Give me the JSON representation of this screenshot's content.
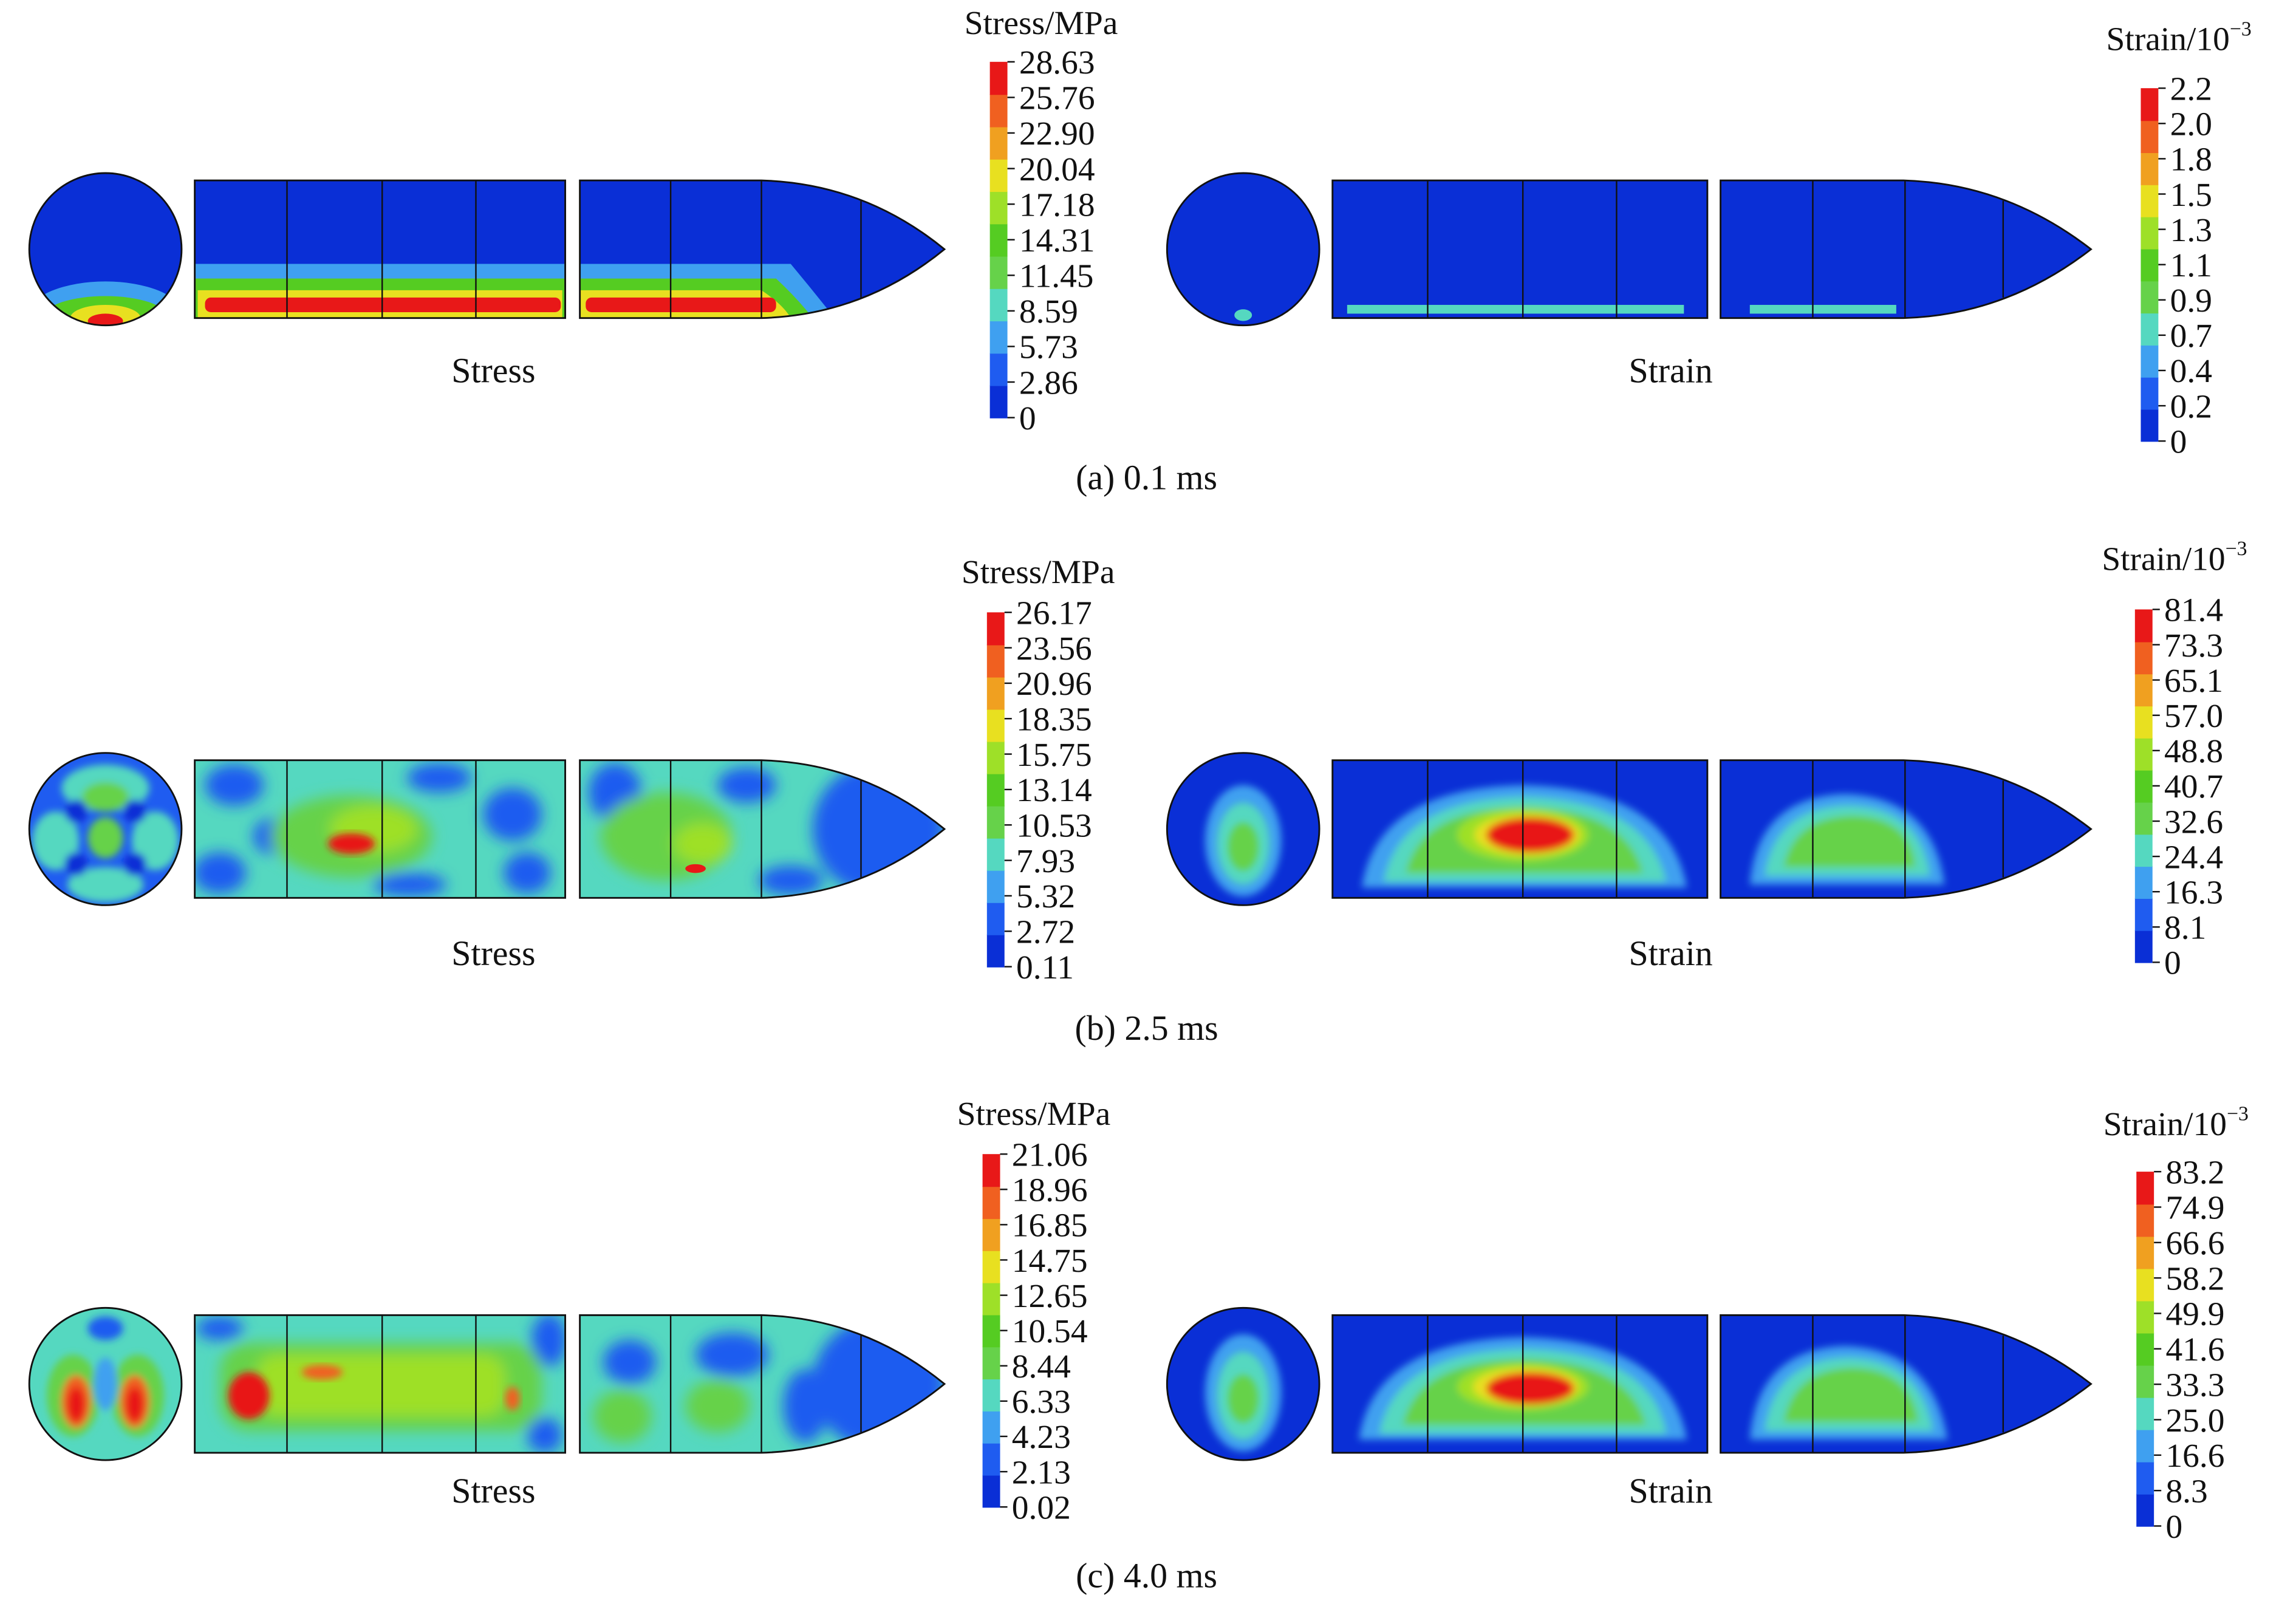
{
  "panels": [
    {
      "caption": "(a) 0.1 ms",
      "stress_label": "Stress",
      "strain_label": "Strain",
      "stress_bar": {
        "title": "Stress/MPa",
        "ticks": [
          "28.63",
          "25.76",
          "22.90",
          "20.04",
          "17.18",
          "14.31",
          "11.45",
          "8.59",
          "5.73",
          "2.86",
          "0"
        ]
      },
      "strain_bar": {
        "title": "Strain/10",
        "title_exp": "−3",
        "ticks": [
          "2.2",
          "2.0",
          "1.8",
          "1.5",
          "1.3",
          "1.1",
          "0.9",
          "0.7",
          "0.4",
          "0.2",
          "0"
        ]
      }
    },
    {
      "caption": "(b) 2.5 ms",
      "stress_label": "Stress",
      "strain_label": "Strain",
      "stress_bar": {
        "title": "Stress/MPa",
        "ticks": [
          "26.17",
          "23.56",
          "20.96",
          "18.35",
          "15.75",
          "13.14",
          "10.53",
          "7.93",
          "5.32",
          "2.72",
          "0.11"
        ]
      },
      "strain_bar": {
        "title": "Strain/10",
        "title_exp": "−3",
        "ticks": [
          "81.4",
          "73.3",
          "65.1",
          "57.0",
          "48.8",
          "40.7",
          "32.6",
          "24.4",
          "16.3",
          "8.1",
          "0"
        ]
      }
    },
    {
      "caption": "(c) 4.0 ms",
      "stress_label": "Stress",
      "strain_label": "Strain",
      "stress_bar": {
        "title": "Stress/MPa",
        "ticks": [
          "21.06",
          "18.96",
          "16.85",
          "14.75",
          "12.65",
          "10.54",
          "8.44",
          "6.33",
          "4.23",
          "2.13",
          "0.02"
        ]
      },
      "strain_bar": {
        "title": "Strain/10",
        "title_exp": "−3",
        "ticks": [
          "83.2",
          "74.9",
          "66.6",
          "58.2",
          "49.9",
          "41.6",
          "33.3",
          "25.0",
          "16.6",
          "8.3",
          "0"
        ]
      }
    }
  ],
  "colors": {
    "scale": [
      "#0a2fd6",
      "#1f5cf0",
      "#3fa0f0",
      "#55d8c0",
      "#66d24a",
      "#55cc22",
      "#9ee028",
      "#e8e020",
      "#f0a020",
      "#f06020",
      "#e81818"
    ],
    "outline": "#111111"
  }
}
